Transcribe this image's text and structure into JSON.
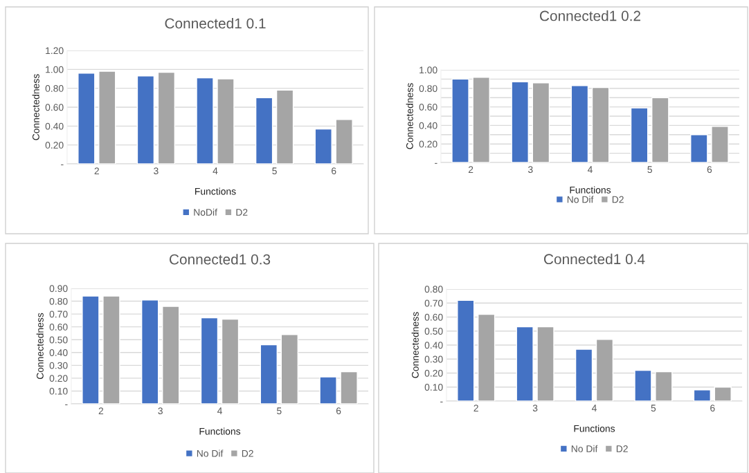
{
  "chart_data": [
    {
      "type": "bar",
      "title": "Connected1 0.1",
      "xlabel": "Functions",
      "ylabel": "Connectedness",
      "categories": [
        "2",
        "3",
        "4",
        "5",
        "6"
      ],
      "series": [
        {
          "name": "NoDif",
          "color": "#4472c4",
          "values": [
            0.96,
            0.93,
            0.91,
            0.7,
            0.37
          ]
        },
        {
          "name": "D2",
          "color": "#a5a5a5",
          "values": [
            0.98,
            0.97,
            0.9,
            0.78,
            0.47
          ]
        }
      ],
      "ylim": [
        0,
        1.2
      ],
      "yticks": [
        {
          "value": 0,
          "label": "-"
        },
        {
          "value": 0.2,
          "label": "0.20"
        },
        {
          "value": 0.4,
          "label": "0.40"
        },
        {
          "value": 0.6,
          "label": "0.60"
        },
        {
          "value": 0.8,
          "label": "0.80"
        },
        {
          "value": 1.0,
          "label": "1.00"
        },
        {
          "value": 1.2,
          "label": "1.20"
        }
      ],
      "grid": "y",
      "legend": "bottom"
    },
    {
      "type": "bar",
      "title": "Connected1 0.2",
      "xlabel": "Functions",
      "ylabel": "Connectedness",
      "categories": [
        "2",
        "3",
        "4",
        "5",
        "6"
      ],
      "series": [
        {
          "name": "No Dif",
          "color": "#4472c4",
          "values": [
            0.9,
            0.87,
            0.83,
            0.59,
            0.3
          ]
        },
        {
          "name": "D2",
          "color": "#a5a5a5",
          "values": [
            0.92,
            0.86,
            0.81,
            0.7,
            0.39
          ]
        }
      ],
      "ylim": [
        0,
        1.0
      ],
      "yticks": [
        {
          "value": 0,
          "label": "-"
        },
        {
          "value": 0.1,
          "label": null
        },
        {
          "value": 0.2,
          "label": "0.20"
        },
        {
          "value": 0.3,
          "label": null
        },
        {
          "value": 0.4,
          "label": "0.40"
        },
        {
          "value": 0.5,
          "label": null
        },
        {
          "value": 0.6,
          "label": "0.60"
        },
        {
          "value": 0.7,
          "label": null
        },
        {
          "value": 0.8,
          "label": "0.80"
        },
        {
          "value": 0.9,
          "label": null
        },
        {
          "value": 1.0,
          "label": "1.00"
        }
      ],
      "grid": "y",
      "legend": "bottom"
    },
    {
      "type": "bar",
      "title": "Connected1 0.3",
      "xlabel": "Functions",
      "ylabel": "Connectedness",
      "categories": [
        "2",
        "3",
        "4",
        "5",
        "6"
      ],
      "series": [
        {
          "name": "No Dif",
          "color": "#4472c4",
          "values": [
            0.84,
            0.81,
            0.67,
            0.46,
            0.21
          ]
        },
        {
          "name": "D2",
          "color": "#a5a5a5",
          "values": [
            0.84,
            0.76,
            0.66,
            0.54,
            0.25
          ]
        }
      ],
      "ylim": [
        0,
        0.9
      ],
      "yticks": [
        {
          "value": 0,
          "label": "-"
        },
        {
          "value": 0.1,
          "label": "0.10"
        },
        {
          "value": 0.2,
          "label": "0.20"
        },
        {
          "value": 0.3,
          "label": "0.30"
        },
        {
          "value": 0.4,
          "label": "0.40"
        },
        {
          "value": 0.5,
          "label": "0.50"
        },
        {
          "value": 0.6,
          "label": "0.60"
        },
        {
          "value": 0.7,
          "label": "0.70"
        },
        {
          "value": 0.8,
          "label": "0.80"
        },
        {
          "value": 0.9,
          "label": "0.90"
        }
      ],
      "grid": "y",
      "legend": "bottom"
    },
    {
      "type": "bar",
      "title": "Connected1 0.4",
      "xlabel": "Functions",
      "ylabel": "Connectedness",
      "categories": [
        "2",
        "3",
        "4",
        "5",
        "6"
      ],
      "series": [
        {
          "name": "No Dif",
          "color": "#4472c4",
          "values": [
            0.72,
            0.53,
            0.37,
            0.22,
            0.08
          ]
        },
        {
          "name": "D2",
          "color": "#a5a5a5",
          "values": [
            0.62,
            0.53,
            0.44,
            0.21,
            0.1
          ]
        }
      ],
      "ylim": [
        0,
        0.8
      ],
      "yticks": [
        {
          "value": 0,
          "label": "-"
        },
        {
          "value": 0.1,
          "label": "0.10"
        },
        {
          "value": 0.2,
          "label": "0.20"
        },
        {
          "value": 0.3,
          "label": "0.30"
        },
        {
          "value": 0.4,
          "label": "0.40"
        },
        {
          "value": 0.5,
          "label": "0.50"
        },
        {
          "value": 0.6,
          "label": "0.60"
        },
        {
          "value": 0.7,
          "label": "0.70"
        },
        {
          "value": 0.8,
          "label": "0.80"
        }
      ],
      "grid": "y",
      "legend": "bottom"
    }
  ]
}
